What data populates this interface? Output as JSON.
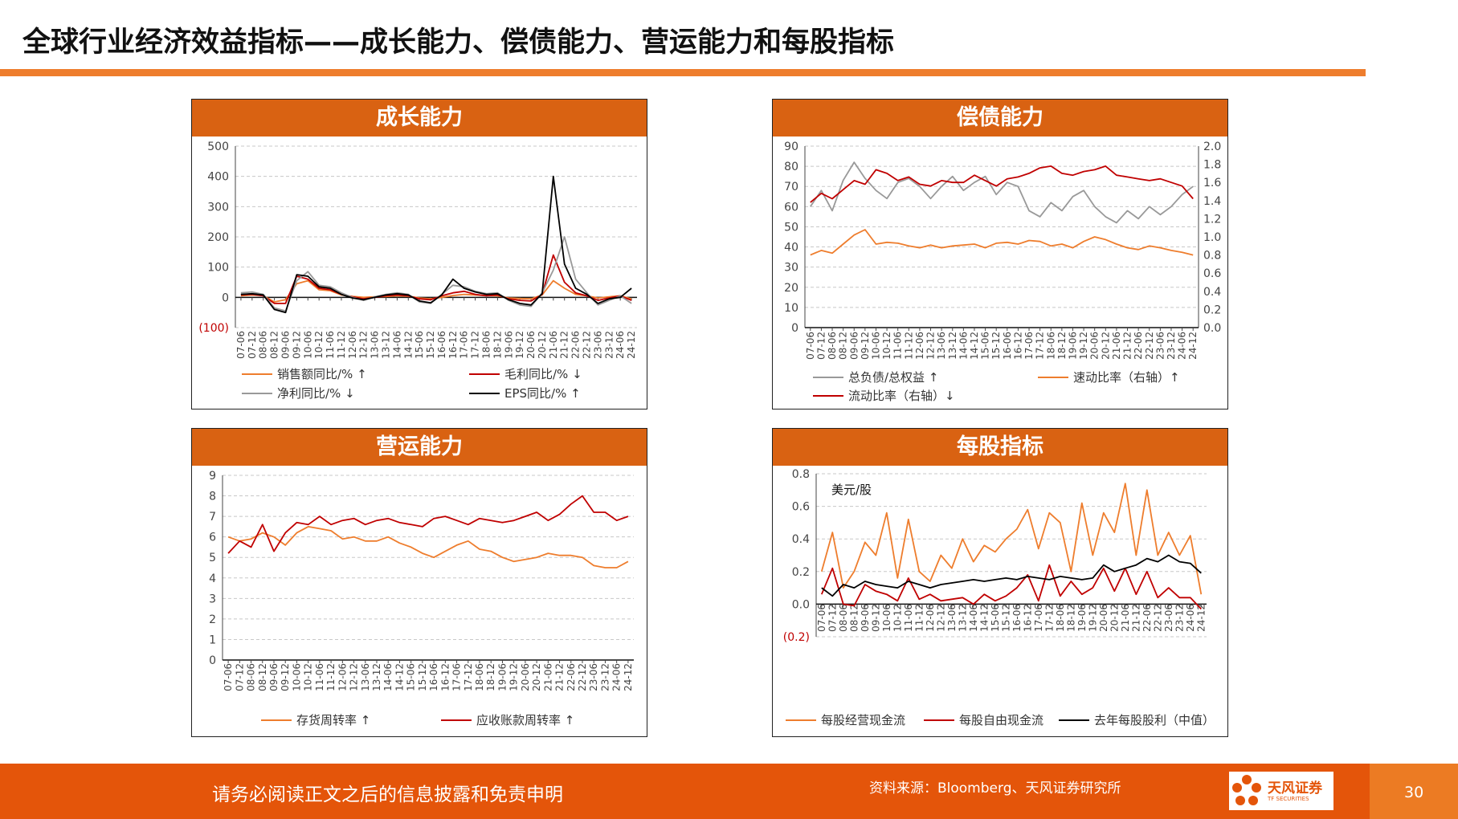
{
  "page": {
    "title": "全球行业经济效益指标——成长能力、偿债能力、营运能力和每股指标",
    "footer_notice": "请务必阅读正文之后的信息披露和免责申明",
    "source": "资料来源：Bloomberg、天风证券研究所",
    "logo_text": "天风证券",
    "logo_sub": "TF SECURITIES",
    "page_number": "30"
  },
  "colors": {
    "orange": "#ee7d2d",
    "red": "#c00000",
    "gray": "#999999",
    "black": "#000000",
    "header": "#d96212"
  },
  "chart_data": [
    {
      "type": "line",
      "title": "成长能力",
      "x": [
        "07-06",
        "07-12",
        "08-06",
        "08-12",
        "09-06",
        "09-12",
        "10-06",
        "10-12",
        "11-06",
        "11-12",
        "12-06",
        "12-12",
        "13-06",
        "13-12",
        "14-06",
        "14-12",
        "15-06",
        "15-12",
        "16-06",
        "16-12",
        "17-06",
        "17-12",
        "18-06",
        "18-12",
        "19-06",
        "19-12",
        "20-06",
        "20-12",
        "21-06",
        "21-12",
        "22-06",
        "22-12",
        "23-06",
        "23-12",
        "24-06",
        "24-12"
      ],
      "yticks": [
        "500",
        "400",
        "300",
        "200",
        "100",
        "0",
        "(100)"
      ],
      "ylim": [
        -100,
        500
      ],
      "series": [
        {
          "name": "销售额同比/% ↑",
          "color": "#ee7d2d",
          "values": [
            5,
            8,
            6,
            -15,
            -8,
            45,
            55,
            25,
            22,
            8,
            3,
            0,
            2,
            3,
            5,
            4,
            -2,
            -5,
            0,
            6,
            10,
            8,
            6,
            5,
            -2,
            -4,
            -5,
            8,
            55,
            30,
            10,
            5,
            -2,
            2,
            5,
            -5
          ]
        },
        {
          "name": "毛利同比/% ↓",
          "color": "#c00000",
          "values": [
            8,
            10,
            5,
            -20,
            -20,
            70,
            60,
            30,
            25,
            10,
            2,
            -5,
            0,
            5,
            8,
            5,
            -5,
            -8,
            5,
            15,
            20,
            10,
            5,
            8,
            -5,
            -10,
            -12,
            10,
            140,
            50,
            15,
            5,
            -10,
            -2,
            5,
            -10
          ]
        },
        {
          "name": "净利同比/% ↓",
          "color": "#999999",
          "values": [
            15,
            18,
            10,
            -35,
            -45,
            55,
            85,
            40,
            35,
            15,
            0,
            -10,
            2,
            10,
            15,
            10,
            -15,
            -20,
            10,
            40,
            35,
            20,
            12,
            15,
            -10,
            -25,
            -30,
            15,
            90,
            200,
            60,
            15,
            -25,
            -10,
            5,
            -20
          ]
        },
        {
          "name": "EPS同比/% ↑",
          "color": "#000000",
          "values": [
            10,
            12,
            8,
            -40,
            -50,
            75,
            70,
            35,
            30,
            10,
            -2,
            -8,
            0,
            8,
            12,
            8,
            -12,
            -18,
            8,
            60,
            30,
            18,
            10,
            12,
            -8,
            -20,
            -25,
            12,
            400,
            110,
            30,
            10,
            -20,
            -5,
            0,
            30
          ]
        }
      ]
    },
    {
      "type": "line",
      "title": "偿债能力",
      "x": [
        "07-06",
        "07-12",
        "08-06",
        "08-12",
        "09-06",
        "09-12",
        "10-06",
        "10-12",
        "11-06",
        "11-12",
        "12-06",
        "12-12",
        "13-06",
        "13-12",
        "14-06",
        "14-12",
        "15-06",
        "15-12",
        "16-06",
        "16-12",
        "17-06",
        "17-12",
        "18-06",
        "18-12",
        "19-06",
        "19-12",
        "20-06",
        "20-12",
        "21-06",
        "21-12",
        "22-06",
        "22-12",
        "23-06",
        "23-12",
        "24-06",
        "24-12"
      ],
      "yticks_left": [
        "90",
        "80",
        "70",
        "60",
        "50",
        "40",
        "30",
        "20",
        "10",
        "0"
      ],
      "yticks_right": [
        "2.0",
        "1.8",
        "1.6",
        "1.4",
        "1.2",
        "1.0",
        "0.8",
        "0.6",
        "0.4",
        "0.2",
        "0.0"
      ],
      "ylim_left": [
        0,
        90
      ],
      "ylim_right": [
        0,
        2.0
      ],
      "series": [
        {
          "name": "总负债/总权益 ↑",
          "color": "#999999",
          "axis": "left",
          "values": [
            60,
            68,
            58,
            73,
            82,
            74,
            68,
            64,
            72,
            74,
            70,
            64,
            70,
            75,
            68,
            72,
            75,
            66,
            72,
            70,
            58,
            55,
            62,
            58,
            65,
            68,
            60,
            55,
            52,
            58,
            54,
            60,
            56,
            60,
            66,
            70
          ]
        },
        {
          "name": "速动比率（右轴）↑",
          "color": "#ee7d2d",
          "axis": "right",
          "values": [
            0.8,
            0.85,
            0.82,
            0.92,
            1.02,
            1.08,
            0.92,
            0.94,
            0.93,
            0.9,
            0.88,
            0.91,
            0.88,
            0.9,
            0.91,
            0.92,
            0.88,
            0.93,
            0.94,
            0.92,
            0.96,
            0.95,
            0.9,
            0.92,
            0.88,
            0.95,
            1.0,
            0.97,
            0.92,
            0.88,
            0.86,
            0.9,
            0.88,
            0.85,
            0.83,
            0.8
          ]
        },
        {
          "name": "流动比率（右轴）↓",
          "color": "#c00000",
          "axis": "right",
          "values": [
            1.38,
            1.48,
            1.42,
            1.52,
            1.62,
            1.58,
            1.74,
            1.7,
            1.62,
            1.66,
            1.58,
            1.56,
            1.62,
            1.6,
            1.6,
            1.68,
            1.62,
            1.56,
            1.64,
            1.66,
            1.7,
            1.76,
            1.78,
            1.7,
            1.68,
            1.72,
            1.74,
            1.78,
            1.68,
            1.66,
            1.64,
            1.62,
            1.64,
            1.6,
            1.56,
            1.42
          ]
        }
      ]
    },
    {
      "type": "line",
      "title": "营运能力",
      "x": [
        "07-06",
        "07-12",
        "08-06",
        "08-12",
        "09-06",
        "09-12",
        "10-06",
        "10-12",
        "11-06",
        "11-12",
        "12-06",
        "12-12",
        "13-06",
        "13-12",
        "14-06",
        "14-12",
        "15-06",
        "15-12",
        "16-06",
        "16-12",
        "17-06",
        "17-12",
        "18-06",
        "18-12",
        "19-06",
        "19-12",
        "20-06",
        "20-12",
        "21-06",
        "21-12",
        "22-06",
        "22-12",
        "23-06",
        "23-12",
        "24-06",
        "24-12"
      ],
      "yticks": [
        "9",
        "8",
        "7",
        "6",
        "5",
        "4",
        "3",
        "2",
        "1",
        "0"
      ],
      "ylim": [
        0,
        9
      ],
      "series": [
        {
          "name": "存货周转率 ↑",
          "color": "#ee7d2d",
          "values": [
            6.0,
            5.8,
            5.9,
            6.2,
            6.0,
            5.6,
            6.2,
            6.5,
            6.4,
            6.3,
            5.9,
            6.0,
            5.8,
            5.8,
            6.0,
            5.7,
            5.5,
            5.2,
            5.0,
            5.3,
            5.6,
            5.8,
            5.4,
            5.3,
            5.0,
            4.8,
            4.9,
            5.0,
            5.2,
            5.1,
            5.1,
            5.0,
            4.6,
            4.5,
            4.5,
            4.8
          ]
        },
        {
          "name": "应收账款周转率 ↑",
          "color": "#c00000",
          "values": [
            5.2,
            5.8,
            5.5,
            6.6,
            5.3,
            6.2,
            6.7,
            6.6,
            7.0,
            6.6,
            6.8,
            6.9,
            6.6,
            6.8,
            6.9,
            6.7,
            6.6,
            6.5,
            6.9,
            7.0,
            6.8,
            6.6,
            6.9,
            6.8,
            6.7,
            6.8,
            7.0,
            7.2,
            6.8,
            7.1,
            7.6,
            8.0,
            7.2,
            7.2,
            6.8,
            7.0
          ]
        }
      ]
    },
    {
      "type": "line",
      "title": "每股指标",
      "ylabel": "美元/股",
      "x": [
        "07-06",
        "07-12",
        "08-06",
        "08-12",
        "09-06",
        "09-12",
        "10-06",
        "10-12",
        "11-06",
        "11-12",
        "12-06",
        "12-12",
        "13-06",
        "13-12",
        "14-06",
        "14-12",
        "15-06",
        "15-12",
        "16-06",
        "16-12",
        "17-06",
        "17-12",
        "18-06",
        "18-12",
        "19-06",
        "19-12",
        "20-06",
        "20-12",
        "21-06",
        "21-12",
        "22-06",
        "22-12",
        "23-06",
        "23-12",
        "24-06",
        "24-12"
      ],
      "yticks": [
        "0.8",
        "0.6",
        "0.4",
        "0.2",
        "0.0",
        "(0.2)"
      ],
      "ylim": [
        -0.2,
        0.8
      ],
      "series": [
        {
          "name": "每股经营现金流",
          "color": "#ee7d2d",
          "values": [
            0.2,
            0.44,
            0.1,
            0.2,
            0.38,
            0.3,
            0.56,
            0.16,
            0.52,
            0.2,
            0.14,
            0.3,
            0.22,
            0.4,
            0.26,
            0.36,
            0.32,
            0.4,
            0.46,
            0.58,
            0.34,
            0.56,
            0.5,
            0.2,
            0.62,
            0.3,
            0.56,
            0.44,
            0.74,
            0.3,
            0.7,
            0.3,
            0.44,
            0.3,
            0.42,
            0.06
          ]
        },
        {
          "name": "每股自由现金流",
          "color": "#c00000",
          "values": [
            0.06,
            0.22,
            0.0,
            -0.01,
            0.12,
            0.08,
            0.06,
            0.02,
            0.16,
            0.03,
            0.06,
            0.02,
            0.03,
            0.04,
            0.0,
            0.06,
            0.02,
            0.05,
            0.1,
            0.18,
            0.02,
            0.24,
            0.05,
            0.14,
            0.06,
            0.1,
            0.22,
            0.08,
            0.22,
            0.06,
            0.2,
            0.04,
            0.1,
            0.04,
            0.04,
            -0.03
          ]
        },
        {
          "name": "去年每股股利（中值）",
          "color": "#000000",
          "values": [
            0.1,
            0.05,
            0.12,
            0.1,
            0.14,
            0.12,
            0.11,
            0.1,
            0.14,
            0.12,
            0.1,
            0.12,
            0.13,
            0.14,
            0.15,
            0.14,
            0.15,
            0.16,
            0.15,
            0.17,
            0.16,
            0.15,
            0.17,
            0.16,
            0.15,
            0.16,
            0.24,
            0.2,
            0.22,
            0.24,
            0.28,
            0.26,
            0.3,
            0.26,
            0.25,
            0.19
          ]
        }
      ]
    }
  ]
}
